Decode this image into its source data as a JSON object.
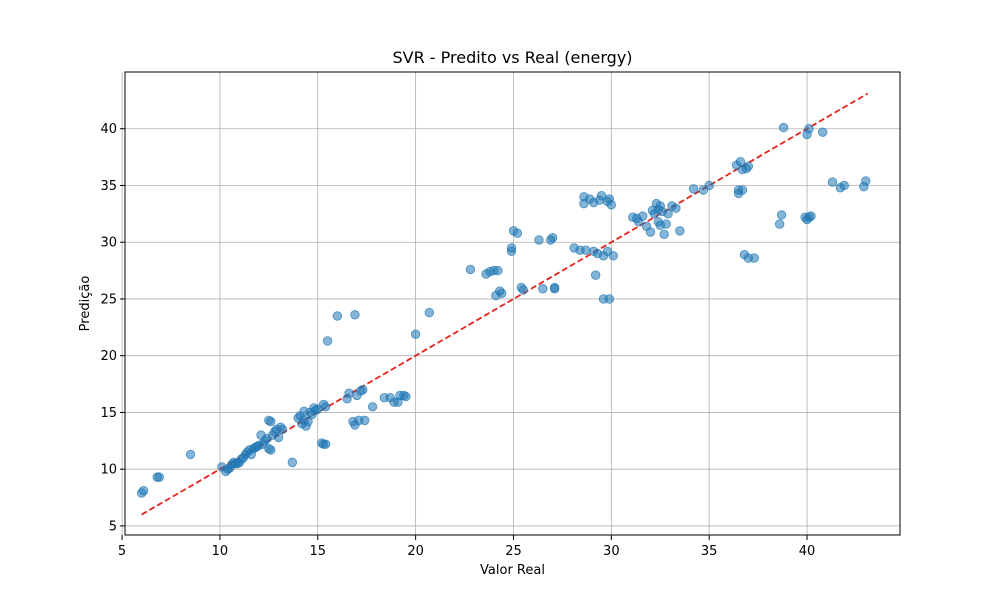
{
  "chart_data": {
    "type": "scatter",
    "title": "SVR - Predito vs Real (energy)",
    "xlabel": "Valor Real",
    "ylabel": "Predição",
    "xlim": [
      5.15,
      44.75
    ],
    "ylim": [
      4.2,
      45.0
    ],
    "xticks": [
      5,
      10,
      15,
      20,
      25,
      30,
      35,
      40
    ],
    "yticks": [
      5,
      10,
      15,
      20,
      25,
      30,
      35,
      40
    ],
    "grid": true,
    "colors": {
      "points": "#1f77b4",
      "reference_line": "#e8231c",
      "grid": "#b0b0b0"
    },
    "reference_line": {
      "style": "dashed",
      "x": [
        6.0,
        43.1
      ],
      "y": [
        6.0,
        43.1
      ]
    },
    "series": [
      {
        "points": [
          [
            6.0,
            7.9
          ],
          [
            6.1,
            8.1
          ],
          [
            6.8,
            9.3
          ],
          [
            6.9,
            9.3
          ],
          [
            8.5,
            11.3
          ],
          [
            10.1,
            10.2
          ],
          [
            10.3,
            9.8
          ],
          [
            10.4,
            10.0
          ],
          [
            10.5,
            10.1
          ],
          [
            10.6,
            10.4
          ],
          [
            10.7,
            10.6
          ],
          [
            10.8,
            10.5
          ],
          [
            10.9,
            10.5
          ],
          [
            11.0,
            10.6
          ],
          [
            11.1,
            10.9
          ],
          [
            11.2,
            11.0
          ],
          [
            11.3,
            11.3
          ],
          [
            11.4,
            11.5
          ],
          [
            11.5,
            11.7
          ],
          [
            11.6,
            11.3
          ],
          [
            11.7,
            11.8
          ],
          [
            11.8,
            11.9
          ],
          [
            11.9,
            12.0
          ],
          [
            12.0,
            12.1
          ],
          [
            12.1,
            13.0
          ],
          [
            12.2,
            12.2
          ],
          [
            12.3,
            12.5
          ],
          [
            12.4,
            12.7
          ],
          [
            12.5,
            11.8
          ],
          [
            12.6,
            11.7
          ],
          [
            12.5,
            14.3
          ],
          [
            12.6,
            14.2
          ],
          [
            12.7,
            13.0
          ],
          [
            12.8,
            13.3
          ],
          [
            12.9,
            13.5
          ],
          [
            13.0,
            12.8
          ],
          [
            13.1,
            13.7
          ],
          [
            13.2,
            13.5
          ],
          [
            13.7,
            10.6
          ],
          [
            14.0,
            14.5
          ],
          [
            14.1,
            14.7
          ],
          [
            14.2,
            14.0
          ],
          [
            14.3,
            14.3
          ],
          [
            14.3,
            15.1
          ],
          [
            14.4,
            13.8
          ],
          [
            14.5,
            14.2
          ],
          [
            14.6,
            15.0
          ],
          [
            14.7,
            14.8
          ],
          [
            14.8,
            15.4
          ],
          [
            14.9,
            15.2
          ],
          [
            15.0,
            15.3
          ],
          [
            15.2,
            12.3
          ],
          [
            15.3,
            12.2
          ],
          [
            15.4,
            12.2
          ],
          [
            15.3,
            15.7
          ],
          [
            15.4,
            15.5
          ],
          [
            15.5,
            21.3
          ],
          [
            16.0,
            23.5
          ],
          [
            16.5,
            16.2
          ],
          [
            16.6,
            16.7
          ],
          [
            16.8,
            14.2
          ],
          [
            16.9,
            13.9
          ],
          [
            17.0,
            16.5
          ],
          [
            16.9,
            23.6
          ],
          [
            17.1,
            14.3
          ],
          [
            17.2,
            16.9
          ],
          [
            17.3,
            17.0
          ],
          [
            17.4,
            14.3
          ],
          [
            17.8,
            15.5
          ],
          [
            18.4,
            16.3
          ],
          [
            18.7,
            16.3
          ],
          [
            18.9,
            15.9
          ],
          [
            19.1,
            15.9
          ],
          [
            19.2,
            16.5
          ],
          [
            19.4,
            16.5
          ],
          [
            19.5,
            16.4
          ],
          [
            20.0,
            21.9
          ],
          [
            20.7,
            23.8
          ],
          [
            22.8,
            27.6
          ],
          [
            23.6,
            27.2
          ],
          [
            23.8,
            27.4
          ],
          [
            24.0,
            27.5
          ],
          [
            24.2,
            27.5
          ],
          [
            24.1,
            25.3
          ],
          [
            24.3,
            25.7
          ],
          [
            24.4,
            25.5
          ],
          [
            24.9,
            29.2
          ],
          [
            24.9,
            29.5
          ],
          [
            25.0,
            31.0
          ],
          [
            25.2,
            30.8
          ],
          [
            25.4,
            26.0
          ],
          [
            25.5,
            25.8
          ],
          [
            26.3,
            30.2
          ],
          [
            26.5,
            25.9
          ],
          [
            26.9,
            30.2
          ],
          [
            27.0,
            30.4
          ],
          [
            27.1,
            25.9
          ],
          [
            27.1,
            26.0
          ],
          [
            28.1,
            29.5
          ],
          [
            28.4,
            29.3
          ],
          [
            28.6,
            33.4
          ],
          [
            28.6,
            34.0
          ],
          [
            28.7,
            29.3
          ],
          [
            28.9,
            33.8
          ],
          [
            29.1,
            33.5
          ],
          [
            29.1,
            29.2
          ],
          [
            29.2,
            27.1
          ],
          [
            29.3,
            29.0
          ],
          [
            29.4,
            33.7
          ],
          [
            29.5,
            34.1
          ],
          [
            29.6,
            28.8
          ],
          [
            29.6,
            25.0
          ],
          [
            29.8,
            33.6
          ],
          [
            29.9,
            25.0
          ],
          [
            29.8,
            29.2
          ],
          [
            29.9,
            33.8
          ],
          [
            30.0,
            33.3
          ],
          [
            30.1,
            28.8
          ],
          [
            31.1,
            32.2
          ],
          [
            31.3,
            32.1
          ],
          [
            31.4,
            31.8
          ],
          [
            31.6,
            32.3
          ],
          [
            31.8,
            31.4
          ],
          [
            32.0,
            30.9
          ],
          [
            32.1,
            32.8
          ],
          [
            32.2,
            32.5
          ],
          [
            32.3,
            33.4
          ],
          [
            32.4,
            32.9
          ],
          [
            32.4,
            31.8
          ],
          [
            32.5,
            31.5
          ],
          [
            32.5,
            33.2
          ],
          [
            32.6,
            32.7
          ],
          [
            32.7,
            30.7
          ],
          [
            32.8,
            31.6
          ],
          [
            32.9,
            32.5
          ],
          [
            33.1,
            33.2
          ],
          [
            33.3,
            33.0
          ],
          [
            33.5,
            31.0
          ],
          [
            34.2,
            34.7
          ],
          [
            34.7,
            34.6
          ],
          [
            35.0,
            35.0
          ],
          [
            36.4,
            36.8
          ],
          [
            36.5,
            34.6
          ],
          [
            36.5,
            34.3
          ],
          [
            36.6,
            37.1
          ],
          [
            36.7,
            34.6
          ],
          [
            36.7,
            36.4
          ],
          [
            36.8,
            28.9
          ],
          [
            36.9,
            36.5
          ],
          [
            37.0,
            36.7
          ],
          [
            37.0,
            28.6
          ],
          [
            37.3,
            28.6
          ],
          [
            38.6,
            31.6
          ],
          [
            38.7,
            32.4
          ],
          [
            38.8,
            40.1
          ],
          [
            39.9,
            32.2
          ],
          [
            40.0,
            32.0
          ],
          [
            40.0,
            39.5
          ],
          [
            40.1,
            40.0
          ],
          [
            40.1,
            32.2
          ],
          [
            40.2,
            32.3
          ],
          [
            40.8,
            39.7
          ],
          [
            41.3,
            35.3
          ],
          [
            41.7,
            34.8
          ],
          [
            41.9,
            35.0
          ],
          [
            42.9,
            34.9
          ],
          [
            43.0,
            35.4
          ]
        ]
      }
    ]
  }
}
